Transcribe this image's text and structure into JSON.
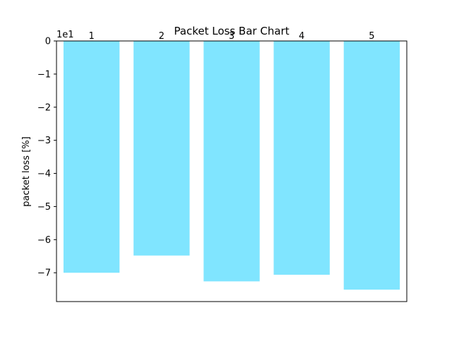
{
  "chart_data": {
    "type": "bar",
    "title": "Packet Loss Bar Chart",
    "xlabel": "",
    "ylabel": "packet loss [%]",
    "offset_label": "1e1",
    "categories": [
      "1",
      "2",
      "3",
      "4",
      "5"
    ],
    "values": [
      -70.0,
      -64.8,
      -72.6,
      -70.6,
      -75.1
    ],
    "ylim": [
      -78.7,
      0
    ],
    "yticks": [
      0,
      -10,
      -20,
      -30,
      -40,
      -50,
      -60,
      -70
    ],
    "ytick_labels": [
      "0",
      "−1",
      "−2",
      "−3",
      "−4",
      "−5",
      "−6",
      "−7"
    ],
    "bar_color": "#80e5ff",
    "grid": false,
    "category_labels_position": "top"
  }
}
